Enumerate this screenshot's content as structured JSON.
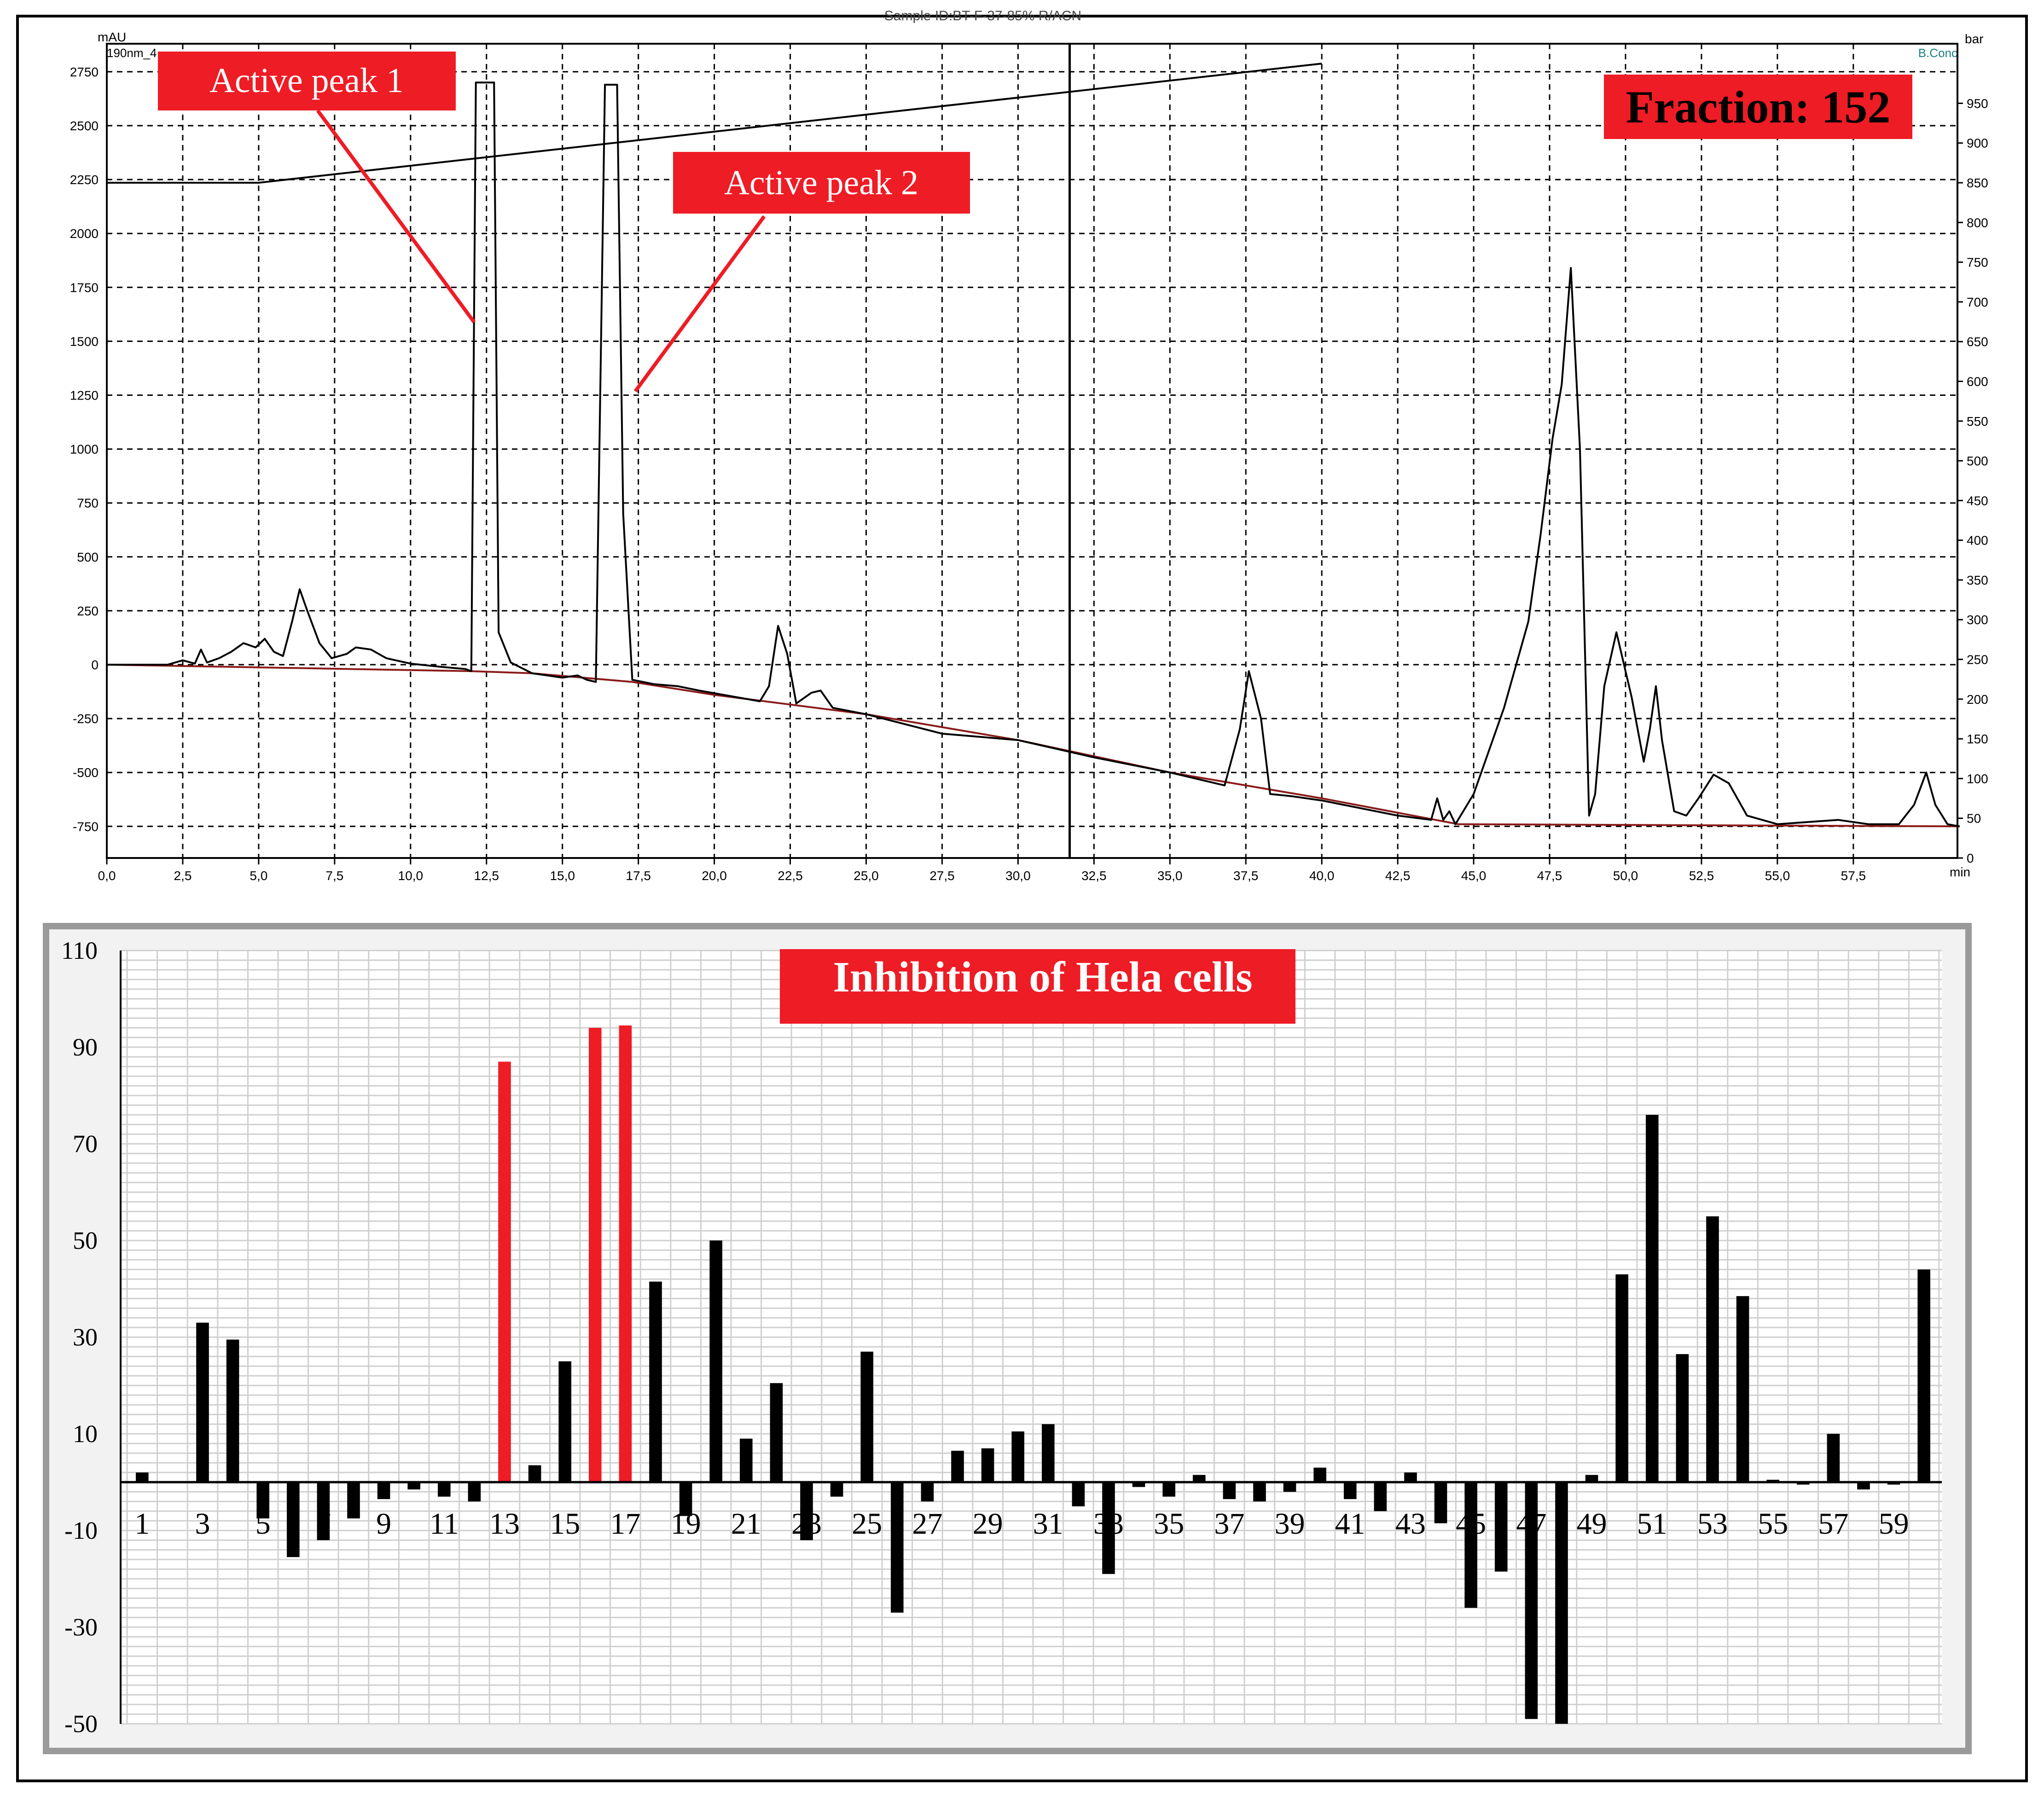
{
  "chromatogram": {
    "header": "Sample ID:BT-F-37-85% R/ACN",
    "y_unit": "mAU",
    "channel": "190nm_4",
    "right_unit": "bar",
    "right_series": "B.Conc",
    "x_unit": "min",
    "fraction_label": "Fraction: 152",
    "callouts": [
      "Active peak 1",
      "Active peak 2"
    ]
  },
  "bar_chart": {
    "title": "Inhibition of Hela cells"
  },
  "colors": {
    "active": "#ee1c25",
    "bar": "#000000",
    "label_fill": "#ee1c25",
    "trace": "#000000",
    "baseline": "#8b1a1a"
  },
  "chart_data": [
    {
      "type": "line",
      "title": "",
      "xlabel": "min",
      "ylabel": "mAU",
      "xlim": [
        0,
        61
      ],
      "ylim": [
        -750,
        2750
      ],
      "x_ticks": [
        "0,0",
        "2,5",
        "5,0",
        "7,5",
        "10,0",
        "12,5",
        "15,0",
        "17,5",
        "20,0",
        "22,5",
        "25,0",
        "27,5",
        "30,0",
        "32,5",
        "35,0",
        "37,5",
        "40,0",
        "42,5",
        "45,0",
        "47,5",
        "50,0",
        "52,5",
        "55,0",
        "57,5"
      ],
      "y_ticks": [
        "2750",
        "2500",
        "2250",
        "2000",
        "1750",
        "1500",
        "1250",
        "1000",
        "750",
        "500",
        "250",
        "0",
        "-250",
        "-500",
        "-750"
      ],
      "y2_ticks": [
        "950",
        "900",
        "850",
        "800",
        "750",
        "700",
        "650",
        "600",
        "550",
        "500",
        "450",
        "400",
        "350",
        "300",
        "250",
        "200",
        "150",
        "100",
        "50",
        "0"
      ],
      "y2lim": [
        0,
        1000
      ],
      "grid": true,
      "series": [
        {
          "name": "190nm_4",
          "points": [
            [
              0,
              0
            ],
            [
              2,
              0
            ],
            [
              2.5,
              20
            ],
            [
              2.9,
              5
            ],
            [
              3.1,
              70
            ],
            [
              3.3,
              10
            ],
            [
              3.7,
              30
            ],
            [
              4.1,
              60
            ],
            [
              4.5,
              100
            ],
            [
              4.9,
              80
            ],
            [
              5.2,
              120
            ],
            [
              5.5,
              60
            ],
            [
              5.8,
              40
            ],
            [
              6.1,
              200
            ],
            [
              6.35,
              350
            ],
            [
              6.6,
              250
            ],
            [
              7.0,
              100
            ],
            [
              7.4,
              30
            ],
            [
              7.9,
              50
            ],
            [
              8.2,
              80
            ],
            [
              8.7,
              70
            ],
            [
              9.2,
              30
            ],
            [
              10,
              5
            ],
            [
              11,
              -10
            ],
            [
              11.8,
              -20
            ],
            [
              12.0,
              -30
            ],
            [
              12.15,
              2700
            ],
            [
              12.75,
              2700
            ],
            [
              12.9,
              150
            ],
            [
              13.3,
              10
            ],
            [
              14.0,
              -40
            ],
            [
              15.0,
              -60
            ],
            [
              15.5,
              -50
            ],
            [
              15.8,
              -70
            ],
            [
              16.1,
              -80
            ],
            [
              16.4,
              2690
            ],
            [
              16.8,
              2690
            ],
            [
              17.0,
              700
            ],
            [
              17.3,
              -70
            ],
            [
              18.0,
              -90
            ],
            [
              18.8,
              -100
            ],
            [
              19.5,
              -120
            ],
            [
              21.5,
              -170
            ],
            [
              21.8,
              -100
            ],
            [
              22.1,
              180
            ],
            [
              22.4,
              50
            ],
            [
              22.7,
              -180
            ],
            [
              23.2,
              -130
            ],
            [
              23.5,
              -120
            ],
            [
              23.9,
              -200
            ],
            [
              25.0,
              -230
            ],
            [
              27.5,
              -320
            ],
            [
              30.0,
              -350
            ],
            [
              32.5,
              -430
            ],
            [
              35.0,
              -500
            ],
            [
              36.8,
              -560
            ],
            [
              37.3,
              -300
            ],
            [
              37.6,
              -30
            ],
            [
              38.0,
              -250
            ],
            [
              38.3,
              -600
            ],
            [
              39.0,
              -610
            ],
            [
              40.0,
              -630
            ],
            [
              42.5,
              -700
            ],
            [
              43.6,
              -720
            ],
            [
              43.8,
              -620
            ],
            [
              44.0,
              -720
            ],
            [
              44.2,
              -680
            ],
            [
              44.4,
              -740
            ],
            [
              45.0,
              -600
            ],
            [
              46.0,
              -200
            ],
            [
              46.8,
              200
            ],
            [
              47.2,
              600
            ],
            [
              47.6,
              1050
            ],
            [
              47.9,
              1300
            ],
            [
              48.2,
              1840
            ],
            [
              48.5,
              1000
            ],
            [
              48.8,
              -700
            ],
            [
              49.0,
              -600
            ],
            [
              49.3,
              -100
            ],
            [
              49.7,
              150
            ],
            [
              50.2,
              -150
            ],
            [
              50.6,
              -450
            ],
            [
              50.8,
              -300
            ],
            [
              51.0,
              -100
            ],
            [
              51.2,
              -350
            ],
            [
              51.6,
              -680
            ],
            [
              52.0,
              -700
            ],
            [
              52.4,
              -620
            ],
            [
              52.9,
              -510
            ],
            [
              53.4,
              -550
            ],
            [
              54.0,
              -700
            ],
            [
              55.0,
              -740
            ],
            [
              56.0,
              -730
            ],
            [
              57.0,
              -720
            ],
            [
              58.0,
              -740
            ],
            [
              59.0,
              -740
            ],
            [
              59.5,
              -650
            ],
            [
              59.9,
              -500
            ],
            [
              60.2,
              -650
            ],
            [
              60.6,
              -740
            ],
            [
              61,
              -750
            ]
          ]
        },
        {
          "name": "B.Conc",
          "points": [
            [
              0,
              850
            ],
            [
              5,
              850
            ],
            [
              40,
              1000
            ]
          ]
        }
      ],
      "annotations": [
        {
          "text": "Active peak 1",
          "x": 12.15,
          "y": 1600
        },
        {
          "text": "Active peak 2",
          "x": 17.1,
          "y": 1270
        },
        {
          "text": "Fraction: 152",
          "x": 31.7
        }
      ]
    },
    {
      "type": "bar",
      "title": "Inhibition of Hela cells",
      "xlabel": "",
      "ylabel": "",
      "ylim": [
        -50,
        110
      ],
      "y_ticks": [
        "110",
        "90",
        "70",
        "50",
        "30",
        "10",
        "-10",
        "-30",
        "-50"
      ],
      "x_tick_labels": [
        "1",
        "3",
        "5",
        "7",
        "9",
        "11",
        "13",
        "15",
        "17",
        "19",
        "21",
        "23",
        "25",
        "27",
        "29",
        "31",
        "33",
        "35",
        "37",
        "39",
        "41",
        "43",
        "45",
        "47",
        "49",
        "51",
        "53",
        "55",
        "57",
        "59"
      ],
      "grid": true,
      "categories": [
        "1",
        "2",
        "3",
        "4",
        "5",
        "6",
        "7",
        "8",
        "9",
        "10",
        "11",
        "12",
        "13",
        "14",
        "15",
        "16",
        "17",
        "18",
        "19",
        "20",
        "21",
        "22",
        "23",
        "24",
        "25",
        "26",
        "27",
        "28",
        "29",
        "30",
        "31",
        "32",
        "33",
        "34",
        "35",
        "36",
        "37",
        "38",
        "39",
        "40",
        "41",
        "42",
        "43",
        "44",
        "45",
        "46",
        "47",
        "48",
        "49",
        "50",
        "51",
        "52",
        "53",
        "54",
        "55",
        "56",
        "57",
        "58",
        "59",
        "60"
      ],
      "values": [
        2,
        0,
        33,
        29.5,
        -7.5,
        -15.5,
        -12,
        -7.5,
        -3.5,
        -1.5,
        -3,
        -4,
        87,
        3.5,
        25,
        94,
        94.5,
        41.5,
        -7,
        50,
        9,
        20.5,
        -12,
        -3,
        27,
        -27,
        -4,
        6.5,
        7,
        10.5,
        12,
        -5,
        -19,
        -1,
        -3,
        1.5,
        -3.5,
        -4,
        -2,
        3,
        -3.5,
        -6,
        2,
        -8.5,
        -26,
        -18.5,
        -49,
        -50,
        1.5,
        43,
        76,
        26.5,
        55,
        38.5,
        0.5,
        -0.5,
        10,
        -1.5,
        -0.5,
        44
      ],
      "active_fractions": [
        "13",
        "16",
        "17"
      ]
    }
  ]
}
